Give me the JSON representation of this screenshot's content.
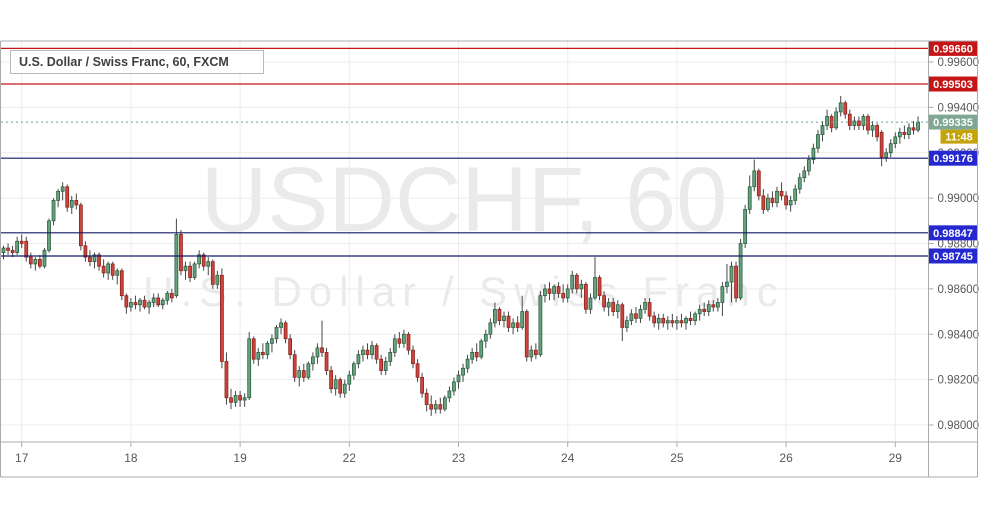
{
  "header": {
    "legend": "U.S. Dollar / Swiss Franc, 60, FXCM"
  },
  "watermark": {
    "line1": "USDCHF, 60",
    "line2": "U.S. Dollar / Swiss Franc"
  },
  "colors": {
    "up_fill": "#67a17d",
    "up_border": "#275b3e",
    "down_fill": "#c9453d",
    "down_border": "#8c211b",
    "wick": "#474747",
    "grid": "#ececec",
    "axis_text": "#595959",
    "border": "#ababab",
    "level_red_line": "#c51617",
    "level_red_badge": "#c51617",
    "level_blue_line": "#131a63",
    "level_blue_badge": "#2528cf",
    "last_price_line": "#6a9e8e",
    "last_price_badge": "#7ea795",
    "countdown_badge": "#c3a409",
    "badge_text": "#ffffff"
  },
  "price_axis": {
    "gridline_labels": [
      "0.99600",
      "0.99400",
      "0.99200",
      "0.99000",
      "0.98800",
      "0.98600",
      "0.98400",
      "0.98200",
      "0.98000"
    ]
  },
  "time_axis": {
    "labels": [
      "17",
      "18",
      "19",
      "22",
      "23",
      "24",
      "25",
      "26",
      "29"
    ]
  },
  "chart_data": {
    "type": "candlestick",
    "symbol": "USDCHF",
    "interval": "60",
    "exchange": "FXCM",
    "title": "U.S. Dollar / Swiss Franc, 60, FXCM",
    "last_price": 0.99335,
    "last_price_label": "0.99335",
    "countdown": "11:48",
    "grid": true,
    "y_axis": {
      "min": 0.9793,
      "max": 0.9972,
      "step": 0.002,
      "gridlines": [
        {
          "price": 0.996,
          "label": "0.99600"
        },
        {
          "price": 0.994,
          "label": "0.99400"
        },
        {
          "price": 0.992,
          "label": "0.99200"
        },
        {
          "price": 0.99,
          "label": "0.99000"
        },
        {
          "price": 0.988,
          "label": "0.98800"
        },
        {
          "price": 0.986,
          "label": "0.98600"
        },
        {
          "price": 0.984,
          "label": "0.98400"
        },
        {
          "price": 0.982,
          "label": "0.98200"
        },
        {
          "price": 0.98,
          "label": "0.98000"
        }
      ]
    },
    "levels": [
      {
        "price": 0.9966,
        "label": "0.99660",
        "color": "red"
      },
      {
        "price": 0.99503,
        "label": "0.99503",
        "color": "red"
      },
      {
        "price": 0.99176,
        "label": "0.99176",
        "color": "blue"
      },
      {
        "price": 0.98847,
        "label": "0.98847",
        "color": "blue"
      },
      {
        "price": 0.98745,
        "label": "0.98745",
        "color": "blue"
      }
    ],
    "x_labels": [
      {
        "label": "17",
        "index": 4
      },
      {
        "label": "18",
        "index": 28
      },
      {
        "label": "19",
        "index": 52
      },
      {
        "label": "22",
        "index": 76
      },
      {
        "label": "23",
        "index": 100
      },
      {
        "label": "24",
        "index": 124
      },
      {
        "label": "25",
        "index": 148
      },
      {
        "label": "26",
        "index": 172
      },
      {
        "label": "29",
        "index": 196
      }
    ],
    "candles": [
      [
        0.9876,
        0.9879,
        0.9873,
        0.9878
      ],
      [
        0.9878,
        0.988,
        0.9875,
        0.9877
      ],
      [
        0.9877,
        0.9879,
        0.9874,
        0.9876
      ],
      [
        0.9876,
        0.9883,
        0.9875,
        0.9881
      ],
      [
        0.9881,
        0.9884,
        0.9878,
        0.988
      ],
      [
        0.9881,
        0.9883,
        0.9872,
        0.9874
      ],
      [
        0.9874,
        0.9876,
        0.9869,
        0.9871
      ],
      [
        0.9871,
        0.9874,
        0.9868,
        0.9873
      ],
      [
        0.9873,
        0.9875,
        0.9869,
        0.987
      ],
      [
        0.987,
        0.9878,
        0.9869,
        0.9877
      ],
      [
        0.9877,
        0.9891,
        0.9876,
        0.989
      ],
      [
        0.989,
        0.99,
        0.9888,
        0.9899
      ],
      [
        0.9899,
        0.9904,
        0.9896,
        0.9903
      ],
      [
        0.9903,
        0.9907,
        0.9899,
        0.9905
      ],
      [
        0.9905,
        0.9906,
        0.9894,
        0.9896
      ],
      [
        0.9896,
        0.9901,
        0.9893,
        0.9899
      ],
      [
        0.9899,
        0.9902,
        0.9895,
        0.9897
      ],
      [
        0.9897,
        0.9898,
        0.9877,
        0.9879
      ],
      [
        0.9879,
        0.9881,
        0.9872,
        0.9874
      ],
      [
        0.9874,
        0.9877,
        0.987,
        0.9872
      ],
      [
        0.9872,
        0.9876,
        0.9869,
        0.9875
      ],
      [
        0.9875,
        0.9876,
        0.9868,
        0.987
      ],
      [
        0.987,
        0.9873,
        0.9865,
        0.9867
      ],
      [
        0.9867,
        0.9872,
        0.9864,
        0.9871
      ],
      [
        0.9871,
        0.9872,
        0.9864,
        0.9866
      ],
      [
        0.9866,
        0.9869,
        0.9862,
        0.9868
      ],
      [
        0.9868,
        0.9869,
        0.9855,
        0.9857
      ],
      [
        0.9857,
        0.9858,
        0.9849,
        0.9852
      ],
      [
        0.9852,
        0.9856,
        0.985,
        0.9854
      ],
      [
        0.9854,
        0.9857,
        0.9851,
        0.9853
      ],
      [
        0.9853,
        0.9856,
        0.985,
        0.9855
      ],
      [
        0.9855,
        0.9857,
        0.9851,
        0.9852
      ],
      [
        0.9852,
        0.9855,
        0.9849,
        0.9854
      ],
      [
        0.9854,
        0.9858,
        0.9852,
        0.9856
      ],
      [
        0.9856,
        0.9858,
        0.9852,
        0.9853
      ],
      [
        0.9853,
        0.9856,
        0.9851,
        0.9855
      ],
      [
        0.9855,
        0.9859,
        0.9853,
        0.9858
      ],
      [
        0.9858,
        0.986,
        0.9854,
        0.9856
      ],
      [
        0.9857,
        0.9891,
        0.9856,
        0.9884
      ],
      [
        0.9884,
        0.9886,
        0.9866,
        0.9868
      ],
      [
        0.9868,
        0.9872,
        0.9864,
        0.987
      ],
      [
        0.987,
        0.9872,
        0.9863,
        0.9865
      ],
      [
        0.9865,
        0.9872,
        0.9864,
        0.9871
      ],
      [
        0.9871,
        0.9877,
        0.9869,
        0.9875
      ],
      [
        0.9875,
        0.9876,
        0.9868,
        0.987
      ],
      [
        0.987,
        0.9874,
        0.9866,
        0.9872
      ],
      [
        0.9872,
        0.9873,
        0.986,
        0.9862
      ],
      [
        0.9862,
        0.9868,
        0.986,
        0.9866
      ],
      [
        0.9866,
        0.9869,
        0.9825,
        0.9828
      ],
      [
        0.9828,
        0.9832,
        0.9809,
        0.9812
      ],
      [
        0.9812,
        0.9816,
        0.9807,
        0.981
      ],
      [
        0.981,
        0.9815,
        0.9808,
        0.9813
      ],
      [
        0.9813,
        0.9815,
        0.9808,
        0.9811
      ],
      [
        0.9811,
        0.9814,
        0.9808,
        0.9812
      ],
      [
        0.9812,
        0.9841,
        0.9811,
        0.9838
      ],
      [
        0.9838,
        0.9839,
        0.9827,
        0.9829
      ],
      [
        0.9829,
        0.9834,
        0.9826,
        0.9832
      ],
      [
        0.9832,
        0.9836,
        0.9829,
        0.9831
      ],
      [
        0.9831,
        0.9837,
        0.9829,
        0.9836
      ],
      [
        0.9836,
        0.984,
        0.9832,
        0.9838
      ],
      [
        0.9838,
        0.9844,
        0.9836,
        0.9843
      ],
      [
        0.9843,
        0.9847,
        0.984,
        0.9845
      ],
      [
        0.9845,
        0.9846,
        0.9836,
        0.9838
      ],
      [
        0.9838,
        0.984,
        0.9829,
        0.9831
      ],
      [
        0.9831,
        0.9833,
        0.9819,
        0.9821
      ],
      [
        0.9821,
        0.9826,
        0.9817,
        0.9824
      ],
      [
        0.9824,
        0.9827,
        0.9819,
        0.9821
      ],
      [
        0.9821,
        0.9828,
        0.982,
        0.9827
      ],
      [
        0.9827,
        0.9832,
        0.9824,
        0.983
      ],
      [
        0.983,
        0.9836,
        0.9827,
        0.9834
      ],
      [
        0.9834,
        0.9846,
        0.983,
        0.9832
      ],
      [
        0.9832,
        0.9834,
        0.9822,
        0.9824
      ],
      [
        0.9824,
        0.9826,
        0.9814,
        0.9816
      ],
      [
        0.9816,
        0.9822,
        0.9813,
        0.982
      ],
      [
        0.982,
        0.9821,
        0.9812,
        0.9814
      ],
      [
        0.9814,
        0.982,
        0.9812,
        0.9818
      ],
      [
        0.9818,
        0.9824,
        0.9815,
        0.9822
      ],
      [
        0.9822,
        0.9828,
        0.982,
        0.9827
      ],
      [
        0.9827,
        0.9833,
        0.9825,
        0.9831
      ],
      [
        0.9831,
        0.9835,
        0.9828,
        0.9833
      ],
      [
        0.9833,
        0.9836,
        0.9829,
        0.9831
      ],
      [
        0.9831,
        0.9837,
        0.9829,
        0.9835
      ],
      [
        0.9835,
        0.9836,
        0.9827,
        0.9829
      ],
      [
        0.9829,
        0.9831,
        0.9822,
        0.9824
      ],
      [
        0.9824,
        0.983,
        0.9822,
        0.9828
      ],
      [
        0.9828,
        0.9834,
        0.9826,
        0.9832
      ],
      [
        0.9832,
        0.984,
        0.983,
        0.9838
      ],
      [
        0.9838,
        0.9841,
        0.9834,
        0.9836
      ],
      [
        0.9836,
        0.9842,
        0.9834,
        0.984
      ],
      [
        0.984,
        0.9841,
        0.9831,
        0.9833
      ],
      [
        0.9833,
        0.9835,
        0.9825,
        0.9827
      ],
      [
        0.9827,
        0.9829,
        0.9819,
        0.9821
      ],
      [
        0.9821,
        0.9823,
        0.9812,
        0.9814
      ],
      [
        0.9814,
        0.9816,
        0.9806,
        0.9809
      ],
      [
        0.9809,
        0.9813,
        0.9804,
        0.9807
      ],
      [
        0.9807,
        0.9811,
        0.9805,
        0.9809
      ],
      [
        0.9809,
        0.9812,
        0.9805,
        0.9807
      ],
      [
        0.9807,
        0.9813,
        0.9806,
        0.9812
      ],
      [
        0.9812,
        0.9817,
        0.981,
        0.9815
      ],
      [
        0.9815,
        0.9821,
        0.9813,
        0.9819
      ],
      [
        0.9819,
        0.9824,
        0.9816,
        0.9822
      ],
      [
        0.9822,
        0.9827,
        0.9819,
        0.9825
      ],
      [
        0.9825,
        0.9831,
        0.9823,
        0.9829
      ],
      [
        0.9829,
        0.9834,
        0.9827,
        0.9832
      ],
      [
        0.9832,
        0.9836,
        0.9828,
        0.983
      ],
      [
        0.983,
        0.9838,
        0.9829,
        0.9837
      ],
      [
        0.9837,
        0.9842,
        0.9834,
        0.984
      ],
      [
        0.984,
        0.9847,
        0.9838,
        0.9845
      ],
      [
        0.9845,
        0.9854,
        0.9843,
        0.9851
      ],
      [
        0.9851,
        0.9852,
        0.9844,
        0.9846
      ],
      [
        0.9846,
        0.985,
        0.9843,
        0.9848
      ],
      [
        0.9848,
        0.985,
        0.9841,
        0.9843
      ],
      [
        0.9843,
        0.9847,
        0.984,
        0.9845
      ],
      [
        0.9845,
        0.9848,
        0.9841,
        0.9843
      ],
      [
        0.9843,
        0.9857,
        0.9842,
        0.985
      ],
      [
        0.985,
        0.9851,
        0.9828,
        0.983
      ],
      [
        0.983,
        0.9835,
        0.9828,
        0.9833
      ],
      [
        0.9833,
        0.9836,
        0.9829,
        0.9831
      ],
      [
        0.9831,
        0.9859,
        0.983,
        0.9857
      ],
      [
        0.9857,
        0.9862,
        0.9854,
        0.986
      ],
      [
        0.986,
        0.9863,
        0.9855,
        0.9858
      ],
      [
        0.9858,
        0.9862,
        0.9855,
        0.9861
      ],
      [
        0.9861,
        0.9863,
        0.9856,
        0.9858
      ],
      [
        0.9858,
        0.9862,
        0.9854,
        0.9856
      ],
      [
        0.9856,
        0.9862,
        0.9854,
        0.986
      ],
      [
        0.986,
        0.9868,
        0.9858,
        0.9866
      ],
      [
        0.9866,
        0.9867,
        0.9858,
        0.986
      ],
      [
        0.986,
        0.9864,
        0.9856,
        0.9862
      ],
      [
        0.9862,
        0.9863,
        0.9849,
        0.9851
      ],
      [
        0.9851,
        0.9858,
        0.9849,
        0.9856
      ],
      [
        0.9856,
        0.9874,
        0.9855,
        0.9865
      ],
      [
        0.9865,
        0.9866,
        0.9855,
        0.9857
      ],
      [
        0.9857,
        0.9859,
        0.985,
        0.9852
      ],
      [
        0.9852,
        0.9856,
        0.9848,
        0.9854
      ],
      [
        0.9854,
        0.9856,
        0.9848,
        0.985
      ],
      [
        0.985,
        0.9855,
        0.9847,
        0.9853
      ],
      [
        0.9853,
        0.9854,
        0.9837,
        0.9843
      ],
      [
        0.9843,
        0.9848,
        0.9841,
        0.9846
      ],
      [
        0.9846,
        0.9851,
        0.9844,
        0.9849
      ],
      [
        0.9849,
        0.9852,
        0.9845,
        0.9847
      ],
      [
        0.9847,
        0.9853,
        0.9845,
        0.9851
      ],
      [
        0.9851,
        0.9856,
        0.9849,
        0.9854
      ],
      [
        0.9854,
        0.9856,
        0.9846,
        0.9848
      ],
      [
        0.9848,
        0.985,
        0.9843,
        0.9845
      ],
      [
        0.9845,
        0.9849,
        0.9842,
        0.9847
      ],
      [
        0.9847,
        0.9849,
        0.9843,
        0.9845
      ],
      [
        0.9845,
        0.9848,
        0.9842,
        0.9846
      ],
      [
        0.9846,
        0.9849,
        0.9843,
        0.9845
      ],
      [
        0.9845,
        0.9848,
        0.9842,
        0.9846
      ],
      [
        0.9846,
        0.9849,
        0.9843,
        0.9845
      ],
      [
        0.9845,
        0.9848,
        0.9842,
        0.9847
      ],
      [
        0.9847,
        0.985,
        0.9844,
        0.9846
      ],
      [
        0.9846,
        0.985,
        0.9844,
        0.9849
      ],
      [
        0.9849,
        0.9853,
        0.9846,
        0.9851
      ],
      [
        0.9851,
        0.9854,
        0.9848,
        0.985
      ],
      [
        0.985,
        0.9855,
        0.9848,
        0.9853
      ],
      [
        0.9853,
        0.9855,
        0.985,
        0.9852
      ],
      [
        0.9852,
        0.9856,
        0.985,
        0.9854
      ],
      [
        0.9854,
        0.9863,
        0.9848,
        0.9861
      ],
      [
        0.9861,
        0.9871,
        0.9858,
        0.9863
      ],
      [
        0.9863,
        0.9872,
        0.9854,
        0.987
      ],
      [
        0.987,
        0.9872,
        0.9854,
        0.9856
      ],
      [
        0.9856,
        0.9882,
        0.9855,
        0.988
      ],
      [
        0.988,
        0.9897,
        0.9878,
        0.9895
      ],
      [
        0.9895,
        0.991,
        0.9893,
        0.9905
      ],
      [
        0.9905,
        0.9917,
        0.9903,
        0.9912
      ],
      [
        0.9912,
        0.9913,
        0.9899,
        0.9901
      ],
      [
        0.9901,
        0.9904,
        0.9893,
        0.9895
      ],
      [
        0.9895,
        0.9902,
        0.9894,
        0.99
      ],
      [
        0.99,
        0.9903,
        0.9896,
        0.9898
      ],
      [
        0.9898,
        0.9905,
        0.9896,
        0.9903
      ],
      [
        0.9903,
        0.9907,
        0.9899,
        0.9901
      ],
      [
        0.9901,
        0.9903,
        0.9895,
        0.9897
      ],
      [
        0.9897,
        0.9901,
        0.9894,
        0.9899
      ],
      [
        0.9899,
        0.9906,
        0.9897,
        0.9904
      ],
      [
        0.9904,
        0.9911,
        0.9902,
        0.9909
      ],
      [
        0.9909,
        0.9914,
        0.9907,
        0.9912
      ],
      [
        0.9912,
        0.9919,
        0.991,
        0.9917
      ],
      [
        0.9917,
        0.9924,
        0.9915,
        0.9922
      ],
      [
        0.9922,
        0.993,
        0.992,
        0.9928
      ],
      [
        0.9928,
        0.9934,
        0.9925,
        0.9932
      ],
      [
        0.9932,
        0.9939,
        0.993,
        0.9936
      ],
      [
        0.9936,
        0.9937,
        0.9929,
        0.9931
      ],
      [
        0.9931,
        0.994,
        0.993,
        0.9938
      ],
      [
        0.9938,
        0.9945,
        0.9936,
        0.9942
      ],
      [
        0.9942,
        0.9943,
        0.9935,
        0.9937
      ],
      [
        0.9937,
        0.9939,
        0.993,
        0.9932
      ],
      [
        0.9932,
        0.9936,
        0.993,
        0.9934
      ],
      [
        0.9934,
        0.9936,
        0.993,
        0.9932
      ],
      [
        0.9932,
        0.9937,
        0.993,
        0.9936
      ],
      [
        0.9936,
        0.9937,
        0.9928,
        0.993
      ],
      [
        0.993,
        0.9934,
        0.9927,
        0.9932
      ],
      [
        0.9932,
        0.9933,
        0.9925,
        0.9927
      ],
      [
        0.9929,
        0.993,
        0.9914,
        0.9918
      ],
      [
        0.9918,
        0.9922,
        0.9916,
        0.992
      ],
      [
        0.992,
        0.9926,
        0.9918,
        0.9924
      ],
      [
        0.9924,
        0.9929,
        0.9922,
        0.9927
      ],
      [
        0.9927,
        0.9931,
        0.9924,
        0.9929
      ],
      [
        0.9929,
        0.9932,
        0.9926,
        0.9928
      ],
      [
        0.9928,
        0.9933,
        0.9926,
        0.9931
      ],
      [
        0.9931,
        0.9934,
        0.9928,
        0.993
      ],
      [
        0.993,
        0.9936,
        0.9929,
        0.99335
      ]
    ]
  }
}
